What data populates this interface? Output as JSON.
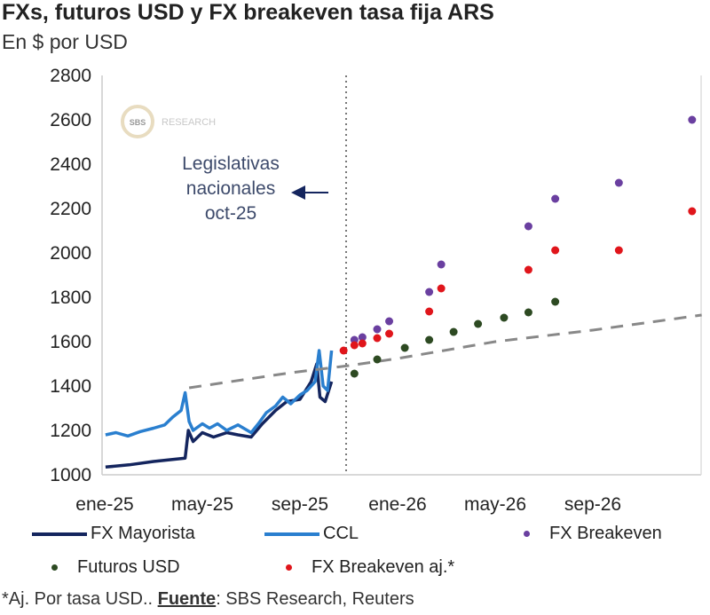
{
  "chart_data": {
    "type": "line",
    "title": "FXs, futuros USD y FX breakeven tasa fija ARS",
    "subtitle": "En $ por USD",
    "ylim": [
      1000,
      2800
    ],
    "yticks": [
      1000,
      1200,
      1400,
      1600,
      1800,
      2000,
      2200,
      2400,
      2600,
      2800
    ],
    "xticks": [
      {
        "label": "ene-25",
        "date": "2025-01-01"
      },
      {
        "label": "may-25",
        "date": "2025-05-01"
      },
      {
        "label": "sep-25",
        "date": "2025-09-01"
      },
      {
        "label": "ene-26",
        "date": "2026-01-01"
      },
      {
        "label": "may-26",
        "date": "2026-05-01"
      },
      {
        "label": "sep-26",
        "date": "2026-09-01"
      }
    ],
    "grid": false,
    "legend_position": "bottom",
    "annotation": {
      "lines": [
        "Legislativas",
        "nacionales",
        "oct-25"
      ],
      "event_date": "2025-11-01"
    },
    "watermark": "SBS RESEARCH",
    "series": [
      {
        "name": "FX Mayorista",
        "kind": "line",
        "color": "#14255e",
        "points": [
          [
            "2025-01-02",
            1035
          ],
          [
            "2025-02-01",
            1045
          ],
          [
            "2025-03-01",
            1060
          ],
          [
            "2025-04-10",
            1075
          ],
          [
            "2025-04-14",
            1200
          ],
          [
            "2025-04-20",
            1150
          ],
          [
            "2025-05-01",
            1190
          ],
          [
            "2025-05-15",
            1170
          ],
          [
            "2025-06-01",
            1190
          ],
          [
            "2025-06-15",
            1180
          ],
          [
            "2025-07-01",
            1170
          ],
          [
            "2025-07-15",
            1230
          ],
          [
            "2025-08-01",
            1290
          ],
          [
            "2025-08-15",
            1330
          ],
          [
            "2025-09-01",
            1340
          ],
          [
            "2025-09-15",
            1420
          ],
          [
            "2025-09-22",
            1500
          ],
          [
            "2025-09-26",
            1350
          ],
          [
            "2025-10-02",
            1330
          ],
          [
            "2025-10-10",
            1420
          ]
        ]
      },
      {
        "name": "CCL",
        "kind": "line",
        "color": "#2a7fcf",
        "points": [
          [
            "2025-01-02",
            1180
          ],
          [
            "2025-01-15",
            1190
          ],
          [
            "2025-01-30",
            1175
          ],
          [
            "2025-02-15",
            1195
          ],
          [
            "2025-03-01",
            1210
          ],
          [
            "2025-03-15",
            1225
          ],
          [
            "2025-03-25",
            1260
          ],
          [
            "2025-04-05",
            1290
          ],
          [
            "2025-04-10",
            1370
          ],
          [
            "2025-04-15",
            1240
          ],
          [
            "2025-04-20",
            1200
          ],
          [
            "2025-05-01",
            1230
          ],
          [
            "2025-05-10",
            1210
          ],
          [
            "2025-05-20",
            1230
          ],
          [
            "2025-06-01",
            1200
          ],
          [
            "2025-06-15",
            1225
          ],
          [
            "2025-07-01",
            1190
          ],
          [
            "2025-07-10",
            1230
          ],
          [
            "2025-07-20",
            1280
          ],
          [
            "2025-08-01",
            1310
          ],
          [
            "2025-08-10",
            1350
          ],
          [
            "2025-08-20",
            1320
          ],
          [
            "2025-09-01",
            1360
          ],
          [
            "2025-09-10",
            1380
          ],
          [
            "2025-09-20",
            1420
          ],
          [
            "2025-09-25",
            1560
          ],
          [
            "2025-09-30",
            1400
          ],
          [
            "2025-10-05",
            1380
          ],
          [
            "2025-10-10",
            1560
          ]
        ]
      },
      {
        "name": "",
        "kind": "dashed",
        "color": "#888888",
        "points": [
          [
            "2025-04-15",
            1392
          ],
          [
            "2025-08-20",
            1460
          ],
          [
            "2025-11-01",
            1492
          ],
          [
            "2026-01-01",
            1524
          ],
          [
            "2026-05-01",
            1600
          ],
          [
            "2026-09-01",
            1652
          ],
          [
            "2027-01-15",
            1720
          ]
        ]
      },
      {
        "name": "FX Breakeven",
        "kind": "dot",
        "color": "#6a3fa0",
        "points": [
          [
            "2025-11-08",
            1608
          ],
          [
            "2025-11-18",
            1620
          ],
          [
            "2025-12-06",
            1656
          ],
          [
            "2025-12-21",
            1692
          ],
          [
            "2026-02-10",
            1824
          ],
          [
            "2026-02-25",
            1948
          ],
          [
            "2026-06-12",
            2120
          ],
          [
            "2026-07-15",
            2244
          ],
          [
            "2026-10-03",
            2316
          ],
          [
            "2027-01-03",
            2600
          ]
        ]
      },
      {
        "name": "FX Breakeven aj.*",
        "kind": "dot",
        "color": "#e0151b",
        "points": [
          [
            "2025-10-25",
            1560
          ],
          [
            "2025-11-08",
            1584
          ],
          [
            "2025-11-18",
            1592
          ],
          [
            "2025-12-06",
            1616
          ],
          [
            "2025-12-21",
            1636
          ],
          [
            "2026-02-10",
            1736
          ],
          [
            "2026-02-25",
            1840
          ],
          [
            "2026-06-12",
            1924
          ],
          [
            "2026-07-15",
            2012
          ],
          [
            "2026-10-03",
            2012
          ],
          [
            "2027-01-03",
            2188
          ]
        ]
      },
      {
        "name": "Futuros USD",
        "kind": "dot",
        "color": "#2d4a22",
        "points": [
          [
            "2025-11-08",
            1456
          ],
          [
            "2025-12-06",
            1520
          ],
          [
            "2026-01-10",
            1572
          ],
          [
            "2026-02-10",
            1608
          ],
          [
            "2026-03-10",
            1644
          ],
          [
            "2026-04-10",
            1680
          ],
          [
            "2026-05-12",
            1708
          ],
          [
            "2026-06-12",
            1732
          ],
          [
            "2026-07-15",
            1780
          ]
        ]
      }
    ]
  },
  "legend": {
    "fx_mayorista": "FX Mayorista",
    "ccl": "CCL",
    "fx_breakeven": "FX Breakeven",
    "futuros": "Futuros USD",
    "fx_breakeven_aj": "FX Breakeven aj.*"
  },
  "footnote": {
    "prefix": "*Aj. Por tasa USD.. ",
    "source_label": "Fuente",
    "source_text": ": SBS Research, Reuters"
  }
}
